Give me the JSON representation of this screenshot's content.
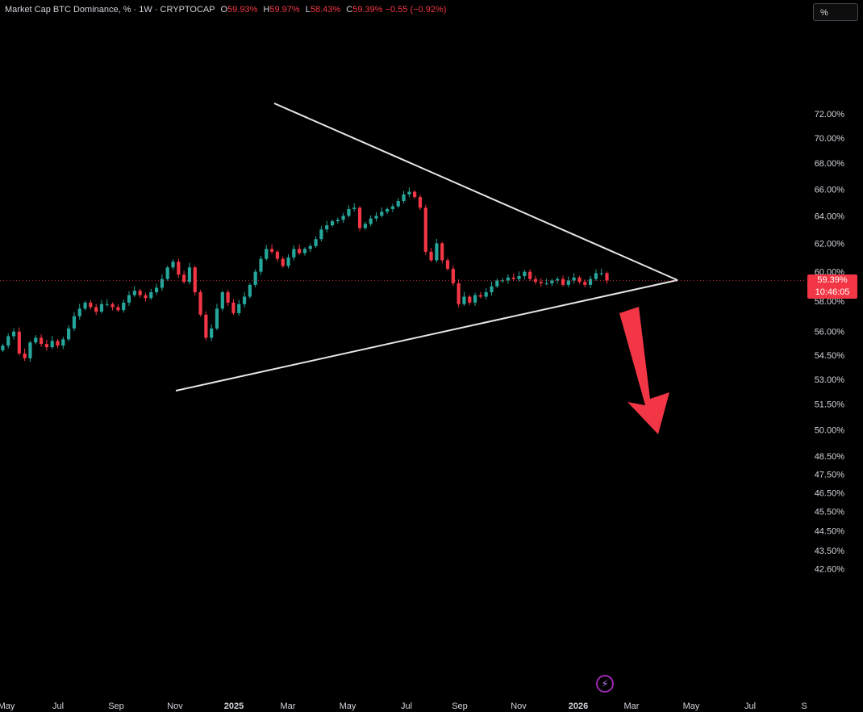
{
  "legend": {
    "title": "Market Cap BTC Dominance, % · 1W · CRYPTOCAP",
    "o_label": "O",
    "o_value": "59.93%",
    "h_label": "H",
    "h_value": "59.97%",
    "l_label": "L",
    "l_value": "58.43%",
    "c_label": "C",
    "c_value": "59.39%",
    "change": "−0.55 (−0.92%)"
  },
  "scale_button": "%",
  "price_badge": {
    "price": "59.39%",
    "countdown": "10:46:05"
  },
  "colors": {
    "up": "#26a69a",
    "down": "#f23645",
    "background": "#000000",
    "trendline": "#e6e6e6",
    "arrow": "#f23645"
  },
  "chart_data": {
    "type": "candlestick",
    "title": "Market Cap BTC Dominance, % · 1W · CRYPTOCAP",
    "x_ticks": [
      "May",
      "Jul",
      "Sep",
      "Nov",
      "2025",
      "Mar",
      "May",
      "Jul",
      "Sep",
      "Nov",
      "2026",
      "Mar",
      "May",
      "Jul",
      "S"
    ],
    "y_ticks": [
      "72.00%",
      "70.00%",
      "68.00%",
      "66.00%",
      "64.00%",
      "62.00%",
      "60.00%",
      "58.00%",
      "56.00%",
      "54.50%",
      "53.00%",
      "51.50%",
      "50.00%",
      "48.50%",
      "47.50%",
      "46.50%",
      "45.50%",
      "44.50%",
      "43.50%",
      "42.60%"
    ],
    "y_scale": "log",
    "last_price": 59.39,
    "closes": [
      55.1,
      55.7,
      56.0,
      54.6,
      54.3,
      55.3,
      55.6,
      55.2,
      55.0,
      55.4,
      55.1,
      55.5,
      56.2,
      57.0,
      57.5,
      57.9,
      57.6,
      57.3,
      57.8,
      57.8,
      57.6,
      57.4,
      57.9,
      58.4,
      58.7,
      58.4,
      58.2,
      58.6,
      58.9,
      59.5,
      60.3,
      60.7,
      59.8,
      59.3,
      60.3,
      58.6,
      57.1,
      55.6,
      56.2,
      57.5,
      58.6,
      57.9,
      57.2,
      57.8,
      58.3,
      59.1,
      60.0,
      60.9,
      61.6,
      61.4,
      60.9,
      60.4,
      61.0,
      61.6,
      61.3,
      61.6,
      61.8,
      62.3,
      63.0,
      63.3,
      63.6,
      63.7,
      64.0,
      64.5,
      64.6,
      63.1,
      63.4,
      63.8,
      64.0,
      64.3,
      64.5,
      64.7,
      65.1,
      65.6,
      65.8,
      65.4,
      64.6,
      61.4,
      60.8,
      62.0,
      60.8,
      60.2,
      59.2,
      57.8,
      58.3,
      57.9,
      58.4,
      58.3,
      58.6,
      59.0,
      59.4,
      59.4,
      59.6,
      59.5,
      59.7,
      60.0,
      59.5,
      59.3,
      59.2,
      59.2,
      59.4,
      59.5,
      59.1,
      59.4,
      59.6,
      59.3,
      59.1,
      59.5,
      59.9,
      59.9,
      59.39
    ],
    "trendlines": [
      {
        "name": "upper",
        "from": [
          "2025-03",
          68.7
        ],
        "to": [
          "2026-04",
          59.5
        ]
      },
      {
        "name": "lower",
        "from": [
          "2024-11",
          54.2
        ],
        "to": [
          "2026-04",
          59.5
        ]
      }
    ],
    "annotation": "downward arrow",
    "grid": false
  }
}
